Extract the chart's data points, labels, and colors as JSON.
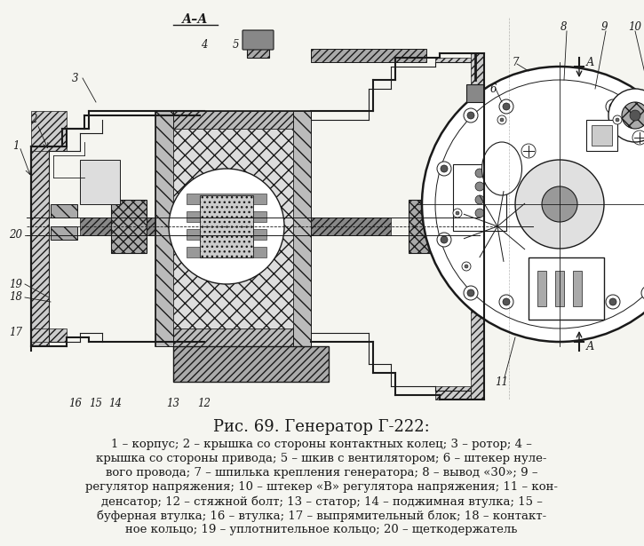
{
  "bg_color": "#f5f5f0",
  "line_color": "#1a1a1a",
  "title": "Рис. 69. Генератор Г-222:",
  "title_fontsize": 13,
  "caption_fontsize": 9.5,
  "caption_lines": [
    "1 – корпус; 2 – крышка со стороны контактных колец; 3 – ротор; 4 –",
    "крышка со стороны привода; 5 – шкив с вентилятором; 6 – штекер нуле-",
    "вого провода; 7 – шпилька крепления генератора; 8 – вывод «30»; 9 –",
    "регулятор напряжения; 10 – штекер «В» регулятора напряжения; 11 – кон-",
    "денсатор; 12 – стяжной болт; 13 – статор; 14 – поджимная втулка; 15 –",
    "буферная втулка; 16 – втулка; 17 – выпрямительный блок; 18 – контакт-",
    "ное кольцо; 19 – уплотнительное кольцо; 20 – щеткодержатель"
  ],
  "section_label": "А–А",
  "label_A": "А",
  "fig_width": 7.25,
  "fig_height": 6.15,
  "dpi": 100
}
